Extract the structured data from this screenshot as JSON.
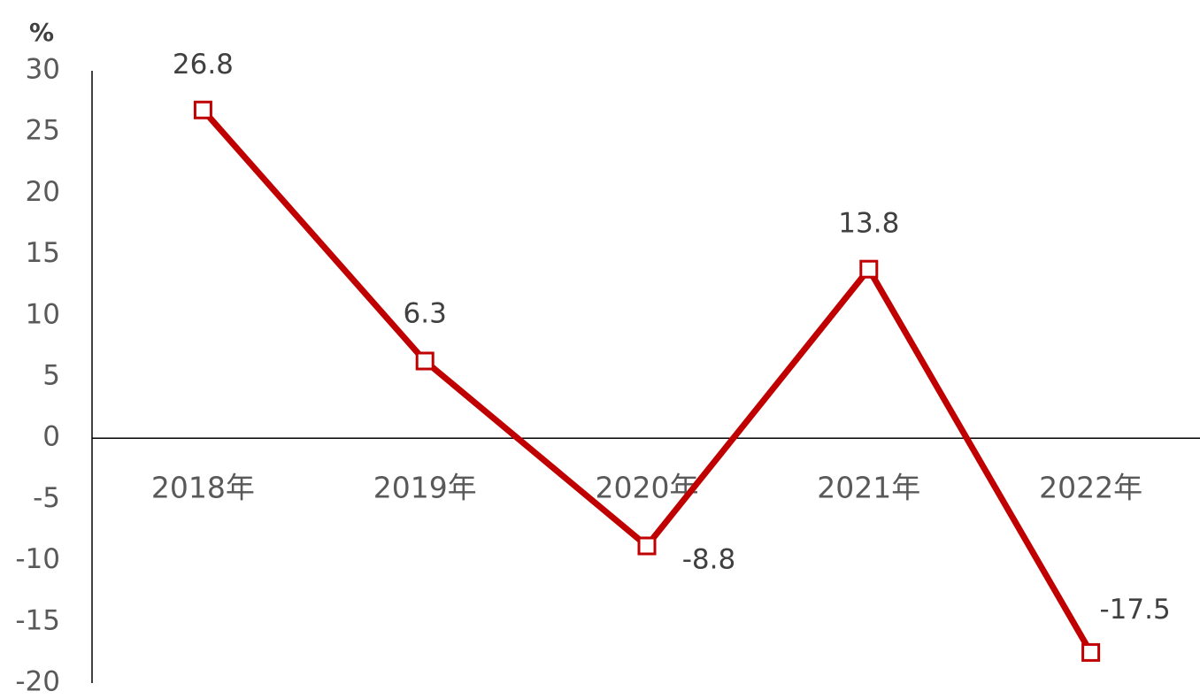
{
  "chart_data": {
    "type": "line",
    "y_axis_label": "%",
    "categories": [
      "2018年",
      "2019年",
      "2020年",
      "2021年",
      "2022年"
    ],
    "values": [
      26.8,
      6.3,
      -8.8,
      13.8,
      -17.5
    ],
    "color": "#c00000",
    "ylim": [
      -20,
      30
    ],
    "yticks": [
      -20,
      -15,
      -10,
      -5,
      0,
      5,
      10,
      15,
      20,
      25,
      30
    ],
    "grid": false,
    "data_labels": true
  }
}
